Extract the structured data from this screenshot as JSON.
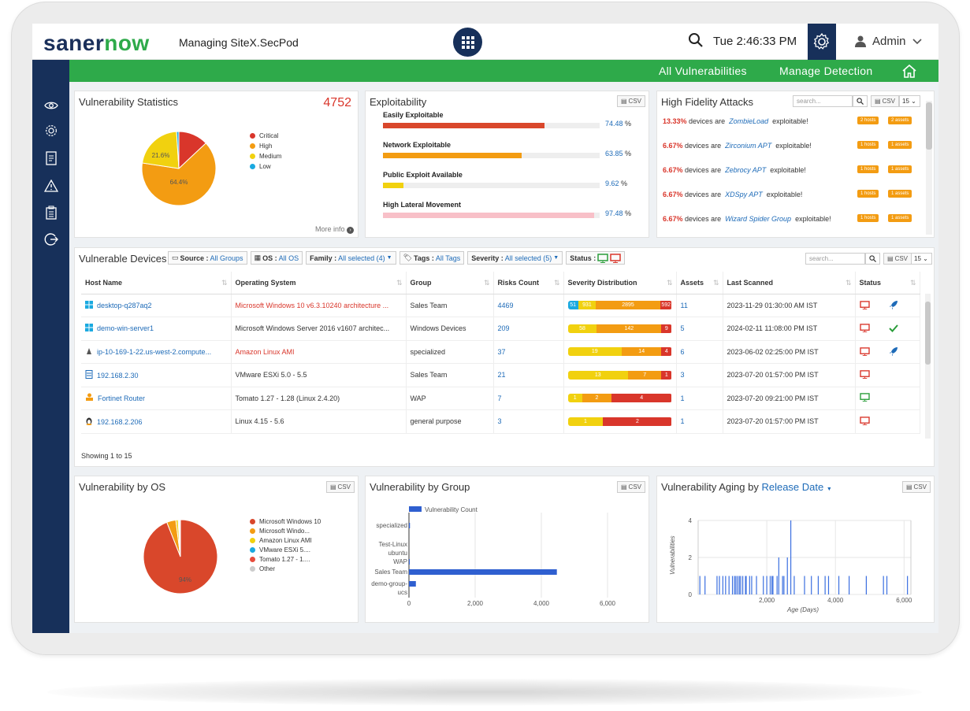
{
  "header": {
    "logo_part1": "saner",
    "logo_part2": "now",
    "managing_label": "Managing",
    "site": "SiteX.SecPod",
    "time": "Tue  2:46:33 PM",
    "user": "Admin"
  },
  "nav": {
    "all_vulnerabilities": "All Vulnerabilities",
    "manage_detection": "Manage Detection"
  },
  "vuln_stats": {
    "title": "Vulnerability Statistics",
    "total": "4752",
    "more_info": "More info",
    "legend": [
      {
        "label": "Critical",
        "color": "#d9362b"
      },
      {
        "label": "High",
        "color": "#f39c12"
      },
      {
        "label": "Medium",
        "color": "#f1d10f"
      },
      {
        "label": "Low",
        "color": "#1aa9e0"
      }
    ],
    "slice_labels": {
      "high": "64.4%",
      "medium": "21.6%"
    }
  },
  "exploitability": {
    "title": "Exploitability",
    "csv": "CSV",
    "rows": [
      {
        "label": "Easily Exploitable",
        "pct": "74.48",
        "value": 0.7448,
        "color": "#d9472b"
      },
      {
        "label": "Network Exploitable",
        "pct": "63.85",
        "value": 0.6385,
        "color": "#f39c12"
      },
      {
        "label": "Public Exploit Available",
        "pct": "9.62",
        "value": 0.0962,
        "color": "#f1d10f"
      },
      {
        "label": "High Lateral Movement",
        "pct": "97.48",
        "value": 0.9748,
        "color": "#f8c0c8"
      }
    ],
    "pct_sign": "%"
  },
  "high_fidelity": {
    "title": "High Fidelity Attacks",
    "search_placeholder": "search...",
    "csv": "CSV",
    "page_size": "15",
    "rows": [
      {
        "pct": "13.33%",
        "mid": "devices are",
        "name": "ZombieLoad",
        "end": "exploitable!",
        "hosts": "2 hosts",
        "assets": "2 assets"
      },
      {
        "pct": "6.67%",
        "mid": "devices are",
        "name": "Zirconium APT",
        "end": "exploitable!",
        "hosts": "1 hosts",
        "assets": "1 assets"
      },
      {
        "pct": "6.67%",
        "mid": "devices are",
        "name": "Zebrocy APT",
        "end": "exploitable!",
        "hosts": "1 hosts",
        "assets": "1 assets"
      },
      {
        "pct": "6.67%",
        "mid": "devices are",
        "name": "XDSpy APT",
        "end": "exploitable!",
        "hosts": "1 hosts",
        "assets": "1 assets"
      },
      {
        "pct": "6.67%",
        "mid": "devices are",
        "name": "Wizard Spider Group",
        "end": "exploitable!",
        "hosts": "1 hosts",
        "assets": "1 assets"
      }
    ]
  },
  "devices": {
    "title": "Vulnerable Devices",
    "filters": {
      "source_label": "Source :",
      "source_val": "All Groups",
      "os_label": "OS :",
      "os_val": "All OS",
      "family_label": "Family :",
      "family_val": "All selected (4)",
      "tags_label": "Tags :",
      "tags_val": "All Tags",
      "severity_label": "Severity :",
      "severity_val": "All selected (5)",
      "status_label": "Status :"
    },
    "search_placeholder": "search...",
    "page_size": "15",
    "columns": [
      "Host Name",
      "Operating System",
      "Group",
      "Risks Count",
      "Severity Distribution",
      "Assets",
      "Last Scanned",
      "Status"
    ],
    "rows": [
      {
        "host": "desktop-q287aq2",
        "os": "Microsoft Windows 10 v6.3.10240 architecture ...",
        "os_red": true,
        "group": "Sales Team",
        "risks": "4469",
        "sev": [
          {
            "v": "51",
            "w": 10,
            "c": "#1aa9e0"
          },
          {
            "v": "931",
            "w": 17,
            "c": "#f1d10f"
          },
          {
            "v": "2895",
            "w": 62,
            "c": "#f39c12"
          },
          {
            "v": "592",
            "w": 11,
            "c": "#d9362b"
          }
        ],
        "assets": "11",
        "scanned": "2023-11-29 01:30:00 AM IST",
        "icon": "windows",
        "status": "red",
        "action": "rocket"
      },
      {
        "host": "demo-win-server1",
        "os": "Microsoft Windows Server 2016 v1607 architec...",
        "os_red": false,
        "group": "Windows Devices",
        "risks": "209",
        "sev": [
          {
            "v": "58",
            "w": 28,
            "c": "#f1d10f"
          },
          {
            "v": "142",
            "w": 62,
            "c": "#f39c12"
          },
          {
            "v": "9",
            "w": 10,
            "c": "#d9362b"
          }
        ],
        "assets": "5",
        "scanned": "2024-02-11 11:08:00 PM IST",
        "icon": "windows",
        "status": "red",
        "action": "check"
      },
      {
        "host": "ip-10-169-1-22.us-west-2.compute...",
        "os": "Amazon Linux AMI",
        "os_red": true,
        "group": "specialized",
        "risks": "37",
        "sev": [
          {
            "v": "19",
            "w": 52,
            "c": "#f1d10f"
          },
          {
            "v": "14",
            "w": 38,
            "c": "#f39c12"
          },
          {
            "v": "4",
            "w": 10,
            "c": "#d9362b"
          }
        ],
        "assets": "6",
        "scanned": "2023-06-02 02:25:00 PM IST",
        "icon": "linux",
        "status": "red",
        "action": "rocket"
      },
      {
        "host": "192.168.2.30",
        "os": "VMware ESXi 5.0 - 5.5",
        "os_red": false,
        "group": "Sales Team",
        "risks": "21",
        "sev": [
          {
            "v": "13",
            "w": 58,
            "c": "#f1d10f"
          },
          {
            "v": "7",
            "w": 32,
            "c": "#f39c12"
          },
          {
            "v": "1",
            "w": 10,
            "c": "#d9362b"
          }
        ],
        "assets": "3",
        "scanned": "2023-07-20 01:57:00 PM IST",
        "icon": "server",
        "status": "red",
        "action": ""
      },
      {
        "host": "Fortinet Router",
        "os": "Tomato 1.27 - 1.28 (Linux 2.4.20)",
        "os_red": false,
        "group": "WAP",
        "risks": "7",
        "sev": [
          {
            "v": "1",
            "w": 14,
            "c": "#f1d10f"
          },
          {
            "v": "2",
            "w": 28,
            "c": "#f39c12"
          },
          {
            "v": "4",
            "w": 58,
            "c": "#d9362b"
          }
        ],
        "assets": "1",
        "scanned": "2023-07-20 09:21:00 PM IST",
        "icon": "router",
        "status": "green",
        "action": ""
      },
      {
        "host": "192.168.2.206",
        "os": "Linux 4.15 - 5.6",
        "os_red": false,
        "group": "general purpose",
        "risks": "3",
        "sev": [
          {
            "v": "1",
            "w": 34,
            "c": "#f1d10f"
          },
          {
            "v": "2",
            "w": 66,
            "c": "#d9362b"
          }
        ],
        "assets": "1",
        "scanned": "2023-07-20 01:57:00 PM IST",
        "icon": "penguin",
        "status": "red",
        "action": ""
      }
    ],
    "showing": "Showing 1 to 15"
  },
  "by_os": {
    "title": "Vulnerability by OS",
    "csv": "CSV",
    "slice_label": "94%",
    "legend": [
      {
        "label": "Microsoft Windows 10",
        "color": "#d9472b"
      },
      {
        "label": "Microsoft Windo...",
        "color": "#f39c12"
      },
      {
        "label": "Amazon Linux AMI",
        "color": "#f1d10f"
      },
      {
        "label": "VMware ESXi 5....",
        "color": "#1aa9e0"
      },
      {
        "label": "Tomato 1.27 - 1....",
        "color": "#e74c3c"
      },
      {
        "label": "Other",
        "color": "#cccccc"
      }
    ]
  },
  "by_group": {
    "title": "Vulnerability by Group",
    "csv": "CSV",
    "legend": "Vulnerability Count",
    "categories": [
      "specialized",
      "Test-Linux",
      "ubuntu",
      "WAP",
      "Sales Team",
      "demo-group-",
      "ucs"
    ],
    "x_ticks": [
      "0",
      "2,000",
      "4,000",
      "6,000"
    ]
  },
  "aging": {
    "title": "Vulnerability Aging by",
    "dropdown": "Release Date",
    "csv": "CSV",
    "ylabel": "Vulnerabilities",
    "xlabel": "Age (Days)",
    "y_ticks": [
      "4",
      "2",
      "0"
    ],
    "x_ticks": [
      "2,000",
      "4,000",
      "6,000"
    ]
  },
  "chart_data": [
    {
      "type": "pie",
      "title": "Vulnerability Statistics",
      "categories": [
        "Critical",
        "High",
        "Medium",
        "Low"
      ],
      "values": [
        13.0,
        64.4,
        21.6,
        1.0
      ]
    },
    {
      "type": "bar",
      "title": "Exploitability",
      "categories": [
        "Easily Exploitable",
        "Network Exploitable",
        "Public Exploit Available",
        "High Lateral Movement"
      ],
      "values": [
        74.48,
        63.85,
        9.62,
        97.48
      ]
    },
    {
      "type": "pie",
      "title": "Vulnerability by OS",
      "categories": [
        "Microsoft Windows 10",
        "Microsoft Windo...",
        "Amazon Linux AMI",
        "VMware ESXi 5....",
        "Tomato 1.27 - 1....",
        "Other"
      ],
      "values": [
        94,
        4,
        1,
        0.4,
        0.3,
        0.3
      ]
    },
    {
      "type": "bar",
      "title": "Vulnerability by Group",
      "categories": [
        "specialized",
        "Test-Linux",
        "ubuntu",
        "WAP",
        "Sales Team",
        "demo-group-ucs"
      ],
      "values": [
        30,
        0,
        0,
        7,
        4469,
        209
      ],
      "xlim": [
        0,
        7000
      ]
    },
    {
      "type": "bar",
      "title": "Vulnerability Aging by Release Date",
      "xlabel": "Age (Days)",
      "ylabel": "Vulnerabilities",
      "ylim": [
        0,
        4
      ],
      "x": [
        50,
        200,
        550,
        620,
        720,
        800,
        900,
        1000,
        1060,
        1100,
        1150,
        1200,
        1240,
        1300,
        1380,
        1400,
        1500,
        1560,
        1700,
        1900,
        2000,
        2100,
        2150,
        2180,
        2300,
        2350,
        2460,
        2500,
        2600,
        2700,
        2800,
        3100,
        3300,
        3500,
        3700,
        3800,
        4100,
        4400,
        4900,
        5400,
        5500,
        6100
      ],
      "values": [
        1,
        1,
        1,
        1,
        1,
        1,
        1,
        1,
        1,
        1,
        1,
        1,
        1,
        1,
        1,
        1,
        1,
        1,
        1,
        1,
        1,
        1,
        1,
        1,
        1,
        2,
        1,
        1,
        2,
        4,
        1,
        1,
        1,
        1,
        1,
        1,
        1,
        1,
        1,
        1,
        1,
        1
      ]
    }
  ]
}
